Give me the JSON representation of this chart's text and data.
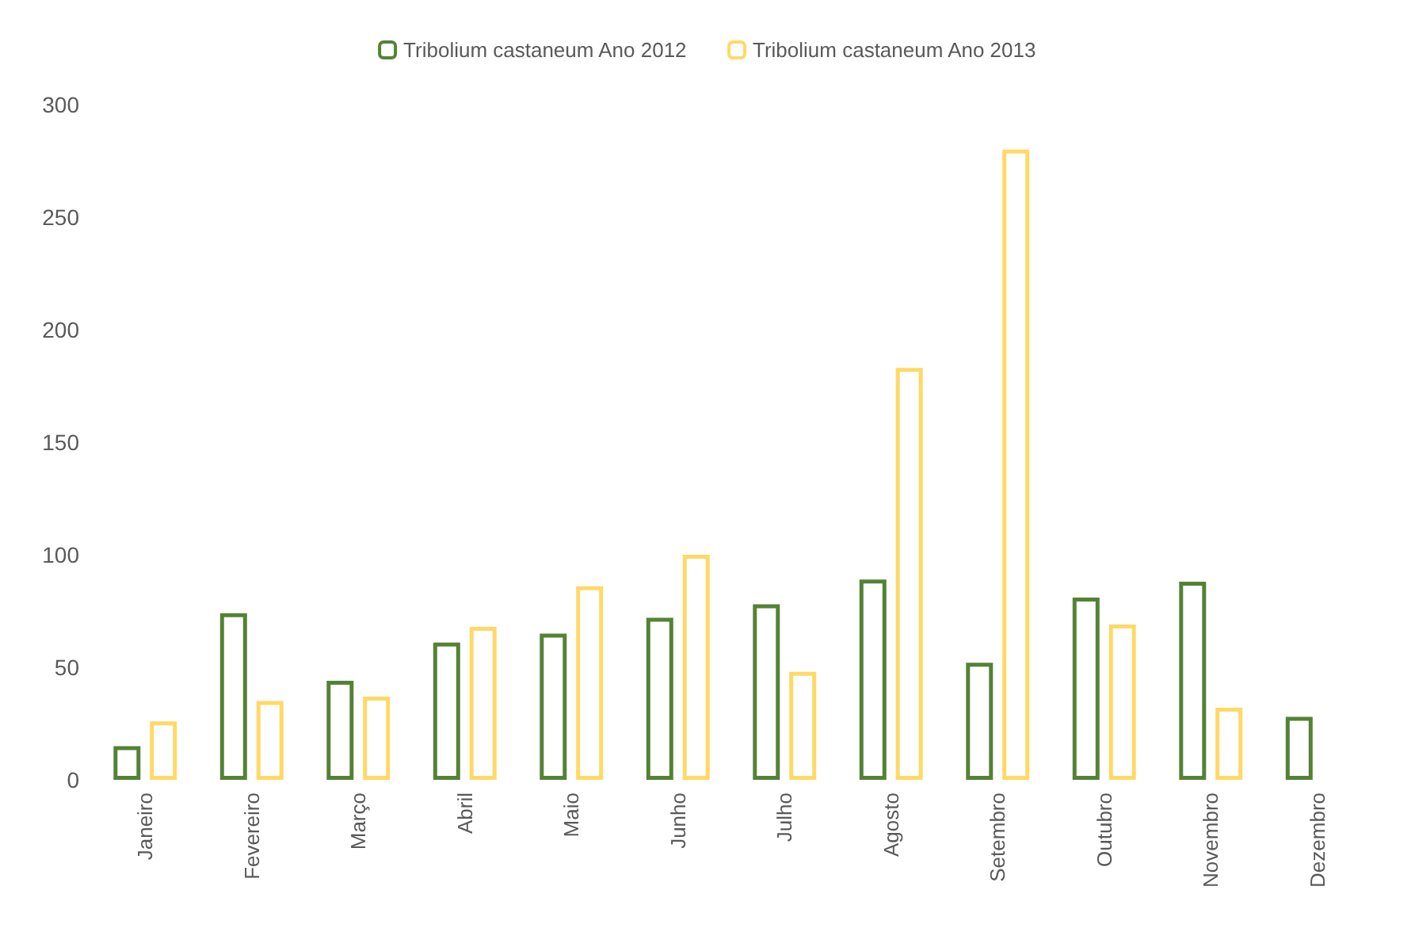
{
  "chart_data": {
    "type": "bar",
    "categories": [
      "Janeiro",
      "Fevereiro",
      "Março",
      "Abril",
      "Maio",
      "Junho",
      "Julho",
      "Agosto",
      "Setembro",
      "Outubro",
      "Novembro",
      "Dezembro"
    ],
    "series": [
      {
        "name": "Tribolium castaneum Ano 2012",
        "color": "#548235",
        "values": [
          15,
          74,
          44,
          61,
          65,
          72,
          78,
          89,
          52,
          81,
          88,
          28
        ]
      },
      {
        "name": "Tribolium castaneum Ano 2013",
        "color": "#ffd966",
        "values": [
          26,
          35,
          37,
          68,
          86,
          100,
          48,
          183,
          280,
          69,
          32,
          null
        ]
      }
    ],
    "ylim": [
      0,
      300
    ],
    "yticks": [
      0,
      50,
      100,
      150,
      200,
      250,
      300
    ],
    "grid": false,
    "legend": "top"
  }
}
